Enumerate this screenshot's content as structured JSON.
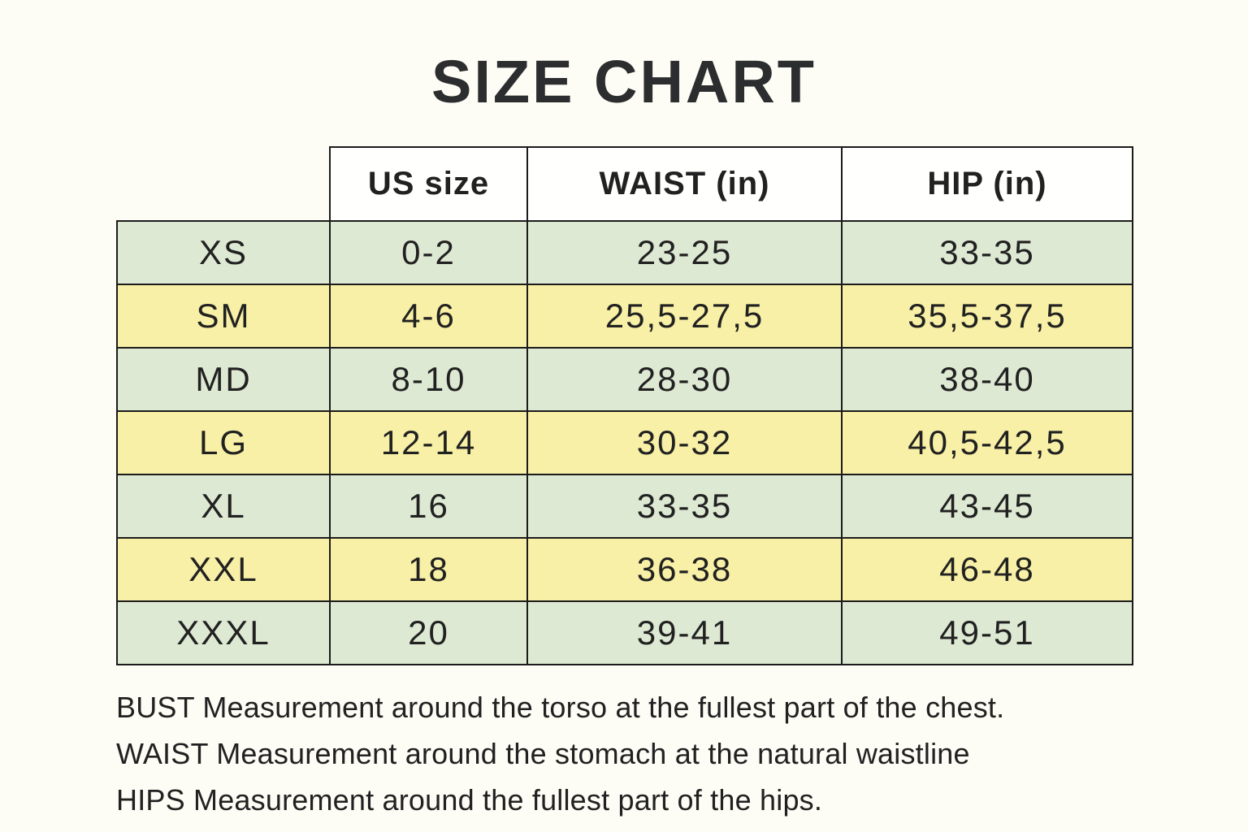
{
  "title": "SIZE CHART",
  "table": {
    "columns": [
      "",
      "US size",
      "WAIST (in)",
      "HIP (in)"
    ],
    "rows": [
      {
        "size": "XS",
        "us_size": "0-2",
        "waist": "23-25",
        "hip": "33-35"
      },
      {
        "size": "SM",
        "us_size": "4-6",
        "waist": "25,5-27,5",
        "hip": "35,5-37,5"
      },
      {
        "size": "MD",
        "us_size": "8-10",
        "waist": "28-30",
        "hip": "38-40"
      },
      {
        "size": "LG",
        "us_size": "12-14",
        "waist": "30-32",
        "hip": "40,5-42,5"
      },
      {
        "size": "XL",
        "us_size": "16",
        "waist": "33-35",
        "hip": "43-45"
      },
      {
        "size": "XXL",
        "us_size": "18",
        "waist": "36-38",
        "hip": "46-48"
      },
      {
        "size": "XXXL",
        "us_size": "20",
        "waist": "39-41",
        "hip": "49-51"
      }
    ]
  },
  "notes": [
    "BUST Measurement around the torso at the fullest part of the chest.",
    "WAIST Measurement around the stomach at the natural waistline",
    "HIPS Measurement around the fullest part of the hips."
  ],
  "colors": {
    "page_bg": "#fdfcf5",
    "row_green": "#dee9d3",
    "row_yellow": "#f8f0a6",
    "border": "#1b1b1b",
    "text": "#212121",
    "title": "#2b2d2e"
  }
}
